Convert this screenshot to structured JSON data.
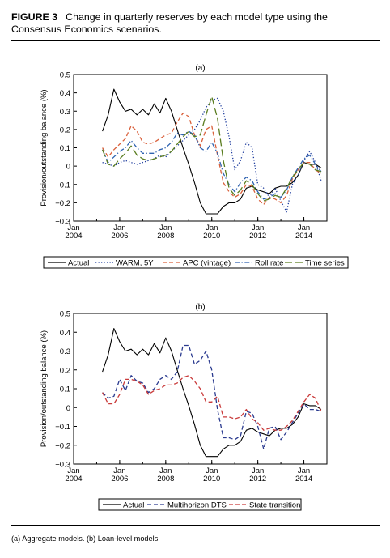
{
  "figure": {
    "label": "FIGURE 3",
    "caption": "Change in quarterly reserves by each model type using the Consensus Economics scenarios.",
    "footnote": "(a) Aggregate models. (b) Loan-level models."
  },
  "chart_data": [
    {
      "type": "line",
      "title": "(a)",
      "xlabel": "",
      "ylabel": "Provision/outstanding balance (%)",
      "xlim": [
        2004.0,
        2015.0
      ],
      "ylim": [
        -0.3,
        0.5
      ],
      "x_ticks": [
        {
          "value": 2004,
          "line1": "Jan",
          "line2": "2004"
        },
        {
          "value": 2006,
          "line1": "Jan",
          "line2": "2006"
        },
        {
          "value": 2008,
          "line1": "Jan",
          "line2": "2008"
        },
        {
          "value": 2010,
          "line1": "Jan",
          "line2": "2010"
        },
        {
          "value": 2012,
          "line1": "Jan",
          "line2": "2012"
        },
        {
          "value": 2014,
          "line1": "Jan",
          "line2": "2014"
        }
      ],
      "y_ticks": [
        "0.5",
        "0.4",
        "0.3",
        "0.2",
        "0.1",
        "0",
        "−0.1",
        "−0.2",
        "−0.3"
      ],
      "y_tick_values": [
        0.5,
        0.4,
        0.3,
        0.2,
        0.1,
        0,
        -0.1,
        -0.2,
        -0.3
      ],
      "grid": false,
      "legend_position": "bottom",
      "x": [
        2005.25,
        2005.5,
        2005.75,
        2006.0,
        2006.25,
        2006.5,
        2006.75,
        2007.0,
        2007.25,
        2007.5,
        2007.75,
        2008.0,
        2008.25,
        2008.5,
        2008.75,
        2009.0,
        2009.25,
        2009.5,
        2009.75,
        2010.0,
        2010.25,
        2010.5,
        2010.75,
        2011.0,
        2011.25,
        2011.5,
        2011.75,
        2012.0,
        2012.25,
        2012.5,
        2012.75,
        2013.0,
        2013.25,
        2013.5,
        2013.75,
        2014.0,
        2014.25,
        2014.5,
        2014.75
      ],
      "series": [
        {
          "name": "Actual",
          "color": "#000000",
          "dash": "solid",
          "values": [
            0.19,
            0.28,
            0.42,
            0.35,
            0.3,
            0.31,
            0.28,
            0.31,
            0.28,
            0.34,
            0.29,
            0.37,
            0.3,
            0.2,
            0.1,
            0.01,
            -0.09,
            -0.2,
            -0.26,
            -0.26,
            -0.26,
            -0.22,
            -0.2,
            -0.2,
            -0.18,
            -0.12,
            -0.11,
            -0.13,
            -0.14,
            -0.15,
            -0.12,
            -0.11,
            -0.11,
            -0.09,
            -0.05,
            0.02,
            0.01,
            0.01,
            -0.01
          ]
        },
        {
          "name": "WARM, 5Y",
          "color": "#1f3d9e",
          "dash": "dotted",
          "values": [
            0.02,
            0.01,
            0.0,
            0.02,
            0.03,
            0.02,
            0.01,
            0.02,
            0.03,
            0.04,
            0.06,
            0.05,
            0.08,
            0.11,
            0.14,
            0.17,
            0.2,
            0.25,
            0.32,
            0.36,
            0.37,
            0.3,
            0.16,
            -0.02,
            0.03,
            0.13,
            0.1,
            -0.1,
            -0.12,
            -0.17,
            -0.12,
            -0.19,
            -0.25,
            -0.1,
            -0.05,
            0.03,
            0.08,
            0.02,
            -0.08
          ]
        },
        {
          "name": "APC (vintage)",
          "color": "#d9603b",
          "dash": "dashed",
          "values": [
            0.1,
            0.05,
            0.09,
            0.12,
            0.15,
            0.22,
            0.19,
            0.13,
            0.12,
            0.13,
            0.15,
            0.17,
            0.18,
            0.24,
            0.29,
            0.27,
            0.17,
            0.11,
            0.2,
            0.22,
            0.06,
            -0.09,
            -0.14,
            -0.17,
            -0.15,
            -0.1,
            -0.11,
            -0.18,
            -0.21,
            -0.17,
            -0.18,
            -0.2,
            -0.16,
            -0.07,
            -0.02,
            0.02,
            0.02,
            -0.02,
            -0.04
          ]
        },
        {
          "name": "Roll rate",
          "color": "#2e62b0",
          "dash": "dashdot",
          "values": [
            0.09,
            0.02,
            0.05,
            0.08,
            0.1,
            0.14,
            0.1,
            0.07,
            0.07,
            0.07,
            0.09,
            0.1,
            0.13,
            0.18,
            0.17,
            0.19,
            0.17,
            0.1,
            0.08,
            0.13,
            0.07,
            -0.04,
            -0.1,
            -0.14,
            -0.09,
            -0.06,
            -0.08,
            -0.14,
            -0.18,
            -0.17,
            -0.15,
            -0.17,
            -0.13,
            -0.06,
            -0.01,
            0.04,
            0.06,
            0.01,
            -0.03
          ]
        },
        {
          "name": "Time series",
          "color": "#5a7d1f",
          "dash": "longdash",
          "values": [
            0.09,
            0.01,
            0.0,
            0.04,
            0.07,
            0.11,
            0.06,
            0.04,
            0.03,
            0.04,
            0.05,
            0.06,
            0.08,
            0.12,
            0.16,
            0.19,
            0.16,
            0.17,
            0.28,
            0.38,
            0.26,
            0.03,
            -0.12,
            -0.16,
            -0.13,
            -0.08,
            -0.1,
            -0.15,
            -0.19,
            -0.18,
            -0.16,
            -0.17,
            -0.12,
            -0.06,
            -0.02,
            0.02,
            0.01,
            -0.02,
            -0.03
          ]
        }
      ]
    },
    {
      "type": "line",
      "title": "(b)",
      "xlabel": "",
      "ylabel": "Provision/outstanding balance (%)",
      "xlim": [
        2004.0,
        2015.0
      ],
      "ylim": [
        -0.3,
        0.5
      ],
      "x_ticks": [
        {
          "value": 2004,
          "line1": "Jan",
          "line2": "2004"
        },
        {
          "value": 2006,
          "line1": "Jan",
          "line2": "2006"
        },
        {
          "value": 2008,
          "line1": "Jan",
          "line2": "2008"
        },
        {
          "value": 2010,
          "line1": "Jan",
          "line2": "2010"
        },
        {
          "value": 2012,
          "line1": "Jan",
          "line2": "2012"
        },
        {
          "value": 2014,
          "line1": "Jan",
          "line2": "2014"
        }
      ],
      "y_ticks": [
        "0.5",
        "0.4",
        "0.3",
        "0.2",
        "0.1",
        "0",
        "−0.1",
        "−0.2",
        "−0.3"
      ],
      "y_tick_values": [
        0.5,
        0.4,
        0.3,
        0.2,
        0.1,
        0,
        -0.1,
        -0.2,
        -0.3
      ],
      "grid": false,
      "legend_position": "bottom",
      "x": [
        2005.25,
        2005.5,
        2005.75,
        2006.0,
        2006.25,
        2006.5,
        2006.75,
        2007.0,
        2007.25,
        2007.5,
        2007.75,
        2008.0,
        2008.25,
        2008.5,
        2008.75,
        2009.0,
        2009.25,
        2009.5,
        2009.75,
        2010.0,
        2010.25,
        2010.5,
        2010.75,
        2011.0,
        2011.25,
        2011.5,
        2011.75,
        2012.0,
        2012.25,
        2012.5,
        2012.75,
        2013.0,
        2013.25,
        2013.5,
        2013.75,
        2014.0,
        2014.25,
        2014.5,
        2014.75
      ],
      "series": [
        {
          "name": "Actual",
          "color": "#000000",
          "dash": "solid",
          "values": [
            0.19,
            0.28,
            0.42,
            0.35,
            0.3,
            0.31,
            0.28,
            0.31,
            0.28,
            0.34,
            0.29,
            0.37,
            0.3,
            0.2,
            0.1,
            0.01,
            -0.09,
            -0.2,
            -0.26,
            -0.26,
            -0.26,
            -0.22,
            -0.2,
            -0.2,
            -0.18,
            -0.12,
            -0.11,
            -0.13,
            -0.14,
            -0.15,
            -0.12,
            -0.11,
            -0.11,
            -0.09,
            -0.05,
            0.02,
            0.01,
            0.01,
            -0.01
          ]
        },
        {
          "name": "Multihorizon DTS",
          "color": "#2a3a8f",
          "dash": "dashed",
          "values": [
            0.08,
            0.05,
            0.06,
            0.15,
            0.09,
            0.17,
            0.14,
            0.13,
            0.08,
            0.1,
            0.15,
            0.17,
            0.15,
            0.19,
            0.33,
            0.33,
            0.23,
            0.25,
            0.3,
            0.2,
            -0.01,
            -0.16,
            -0.16,
            -0.17,
            -0.15,
            -0.02,
            -0.03,
            -0.1,
            -0.22,
            -0.11,
            -0.1,
            -0.17,
            -0.13,
            -0.08,
            -0.03,
            0.02,
            -0.01,
            -0.01,
            -0.02
          ]
        },
        {
          "name": "State transition",
          "color": "#c93a3a",
          "dash": "dashed",
          "values": [
            0.08,
            0.02,
            0.02,
            0.07,
            0.15,
            0.15,
            0.14,
            0.12,
            0.07,
            0.09,
            0.1,
            0.12,
            0.12,
            0.13,
            0.16,
            0.17,
            0.14,
            0.1,
            0.03,
            0.03,
            0.06,
            -0.05,
            -0.05,
            -0.06,
            -0.05,
            -0.01,
            -0.06,
            -0.08,
            -0.12,
            -0.11,
            -0.12,
            -0.12,
            -0.1,
            -0.07,
            -0.02,
            0.03,
            0.07,
            0.05,
            -0.02
          ]
        }
      ]
    }
  ]
}
